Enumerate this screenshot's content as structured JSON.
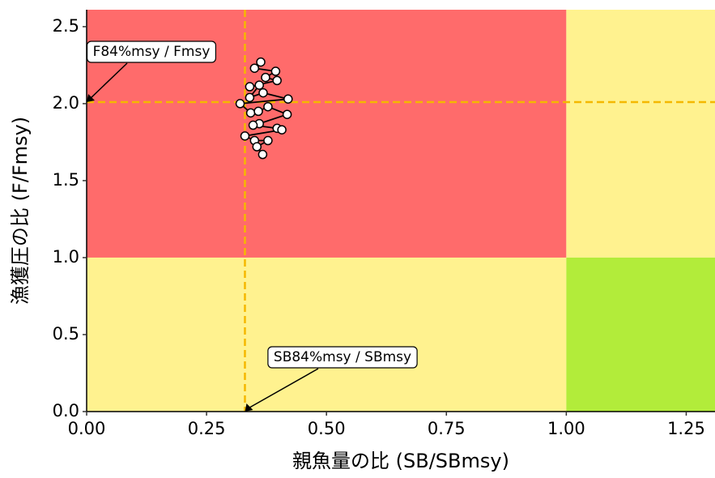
{
  "chart_data": {
    "type": "scatter",
    "x_label": "親魚量の比 (SB/SBmsy)",
    "y_label": "漁獲圧の比 (F/Fmsy)",
    "x": [
      0.363,
      0.35,
      0.394,
      0.373,
      0.397,
      0.34,
      0.36,
      0.34,
      0.368,
      0.42,
      0.32,
      0.342,
      0.358,
      0.378,
      0.418,
      0.36,
      0.347,
      0.397,
      0.407,
      0.33,
      0.35,
      0.378,
      0.355,
      0.367
    ],
    "values": [
      2.27,
      2.23,
      2.21,
      2.17,
      2.15,
      2.11,
      2.12,
      2.04,
      2.07,
      2.03,
      2.0,
      1.94,
      1.95,
      1.98,
      1.93,
      1.87,
      1.86,
      1.84,
      1.83,
      1.79,
      1.76,
      1.76,
      1.72,
      1.67
    ],
    "point_color": "#ffffff",
    "line_color": "#000000",
    "xlim": [
      0,
      1.31
    ],
    "ylim": [
      0,
      2.61
    ],
    "xticks": [
      {
        "value": 0,
        "label": "0.00"
      },
      {
        "value": 0.25,
        "label": "0.25"
      },
      {
        "value": 0.5,
        "label": "0.50"
      },
      {
        "value": 0.75,
        "label": "0.75"
      },
      {
        "value": 1,
        "label": "1.00"
      },
      {
        "value": 1.25,
        "label": "1.25"
      }
    ],
    "yticks": [
      {
        "value": 0,
        "label": "0.0"
      },
      {
        "value": 0.5,
        "label": "0.5"
      },
      {
        "value": 1,
        "label": "1.0"
      },
      {
        "value": 1.5,
        "label": "1.5"
      },
      {
        "value": 2,
        "label": "2.0"
      },
      {
        "value": 2.5,
        "label": "2.5"
      }
    ],
    "zone_boundary": {
      "x": 1,
      "y": 1
    },
    "zone_colors": {
      "red": "#ff6b6b",
      "yellow": "#fff28f",
      "green": "#b2ec3a"
    },
    "ref_lines": {
      "x": 0.33,
      "y": 2.01,
      "color": "#f5b800"
    },
    "annotations": [
      {
        "text": "F84%msy / Fmsy"
      },
      {
        "text": "SB84%msy / SBmsy"
      }
    ]
  }
}
